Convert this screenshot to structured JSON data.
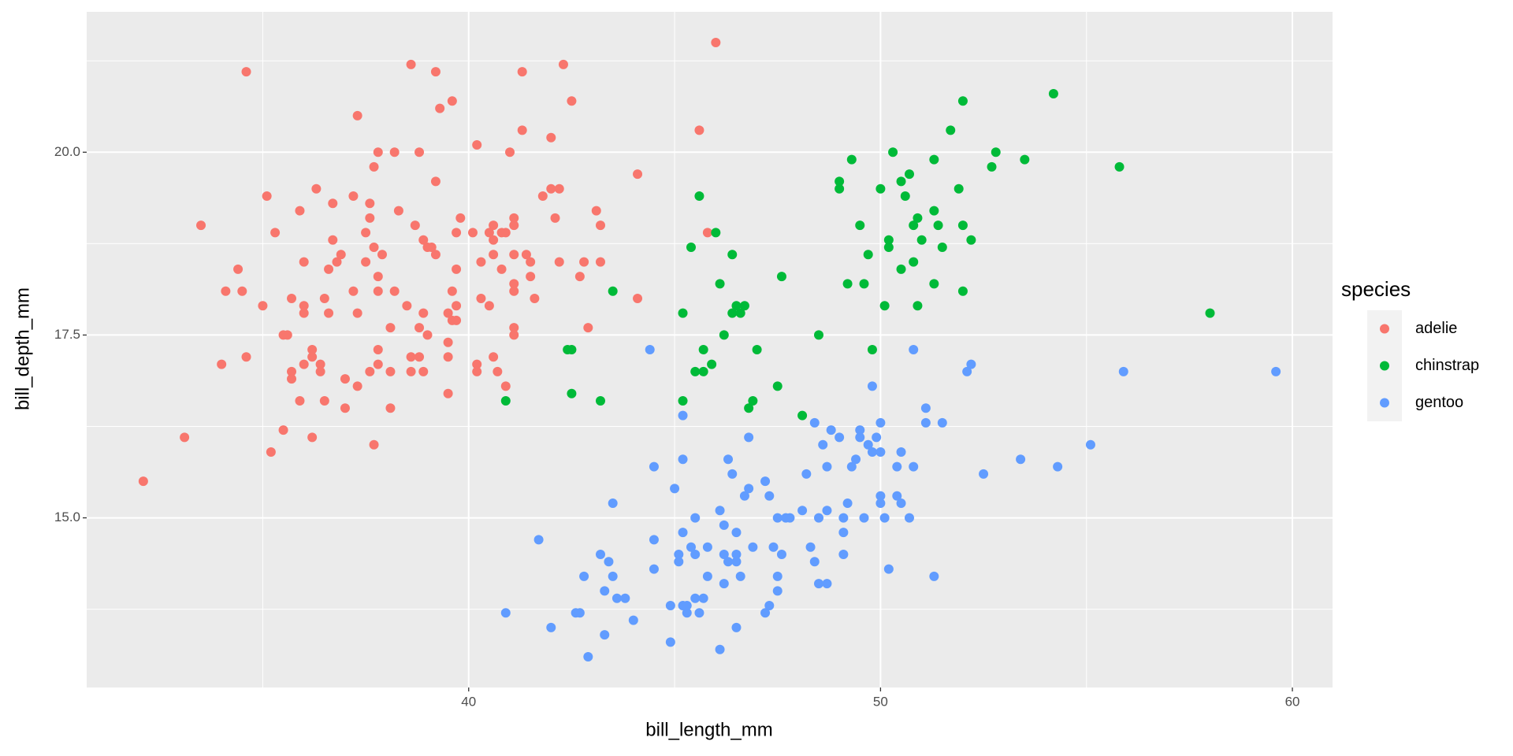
{
  "chart_data": {
    "type": "scatter",
    "x_label": "bill_length_mm",
    "y_label": "bill_depth_mm",
    "legend_title": "species",
    "legend_position": "right",
    "grid": true,
    "xlim": [
      30.725,
      60.975
    ],
    "ylim": [
      12.68,
      21.92
    ],
    "xticks": [
      40,
      50,
      60
    ],
    "yticks": [
      {
        "value": 15,
        "label": "15.0"
      },
      {
        "value": 17.5,
        "label": "17.5"
      },
      {
        "value": 20,
        "label": "20.0"
      }
    ],
    "x_minor_grid": [
      35,
      45,
      55
    ],
    "y_minor_grid": [
      13.75,
      16.25,
      18.75,
      21.25
    ],
    "series": [
      {
        "name": "adelie",
        "color": "#F8766D",
        "x": [
          32.1,
          33.1,
          33.5,
          34.0,
          34.1,
          34.4,
          34.5,
          34.6,
          34.6,
          35.0,
          35.1,
          35.2,
          35.3,
          35.5,
          35.5,
          35.6,
          35.7,
          35.7,
          35.7,
          35.9,
          35.9,
          36.0,
          36.0,
          36.0,
          36.0,
          36.2,
          36.2,
          36.2,
          36.3,
          36.4,
          36.4,
          36.5,
          36.5,
          36.6,
          36.6,
          36.7,
          36.7,
          36.8,
          36.9,
          37.0,
          37.0,
          37.2,
          37.2,
          37.3,
          37.3,
          37.3,
          37.5,
          37.5,
          37.6,
          37.6,
          37.6,
          37.7,
          37.7,
          37.7,
          37.8,
          37.8,
          37.8,
          37.8,
          37.8,
          37.9,
          38.1,
          38.1,
          38.1,
          38.2,
          38.2,
          38.3,
          38.5,
          38.6,
          38.6,
          38.6,
          38.7,
          38.8,
          38.8,
          38.8,
          38.9,
          38.9,
          38.9,
          39.0,
          39.0,
          39.1,
          39.2,
          39.2,
          39.2,
          39.3,
          39.5,
          39.5,
          39.5,
          39.5,
          39.6,
          39.6,
          39.6,
          39.7,
          39.7,
          39.7,
          39.7,
          39.8,
          40.1,
          40.2,
          40.2,
          40.2,
          40.3,
          40.3,
          40.5,
          40.5,
          40.6,
          40.6,
          40.6,
          40.6,
          40.7,
          40.8,
          40.8,
          40.9,
          40.9,
          41.0,
          41.1,
          41.1,
          41.1,
          41.1,
          41.1,
          41.1,
          41.1,
          41.3,
          41.3,
          41.4,
          41.5,
          41.5,
          41.6,
          41.8,
          42.0,
          42.0,
          42.1,
          42.2,
          42.2,
          42.3,
          42.5,
          42.7,
          42.8,
          42.9,
          43.1,
          43.2,
          43.2,
          44.1,
          44.1,
          45.8,
          46.0,
          45.6
        ],
        "values": [
          15.5,
          16.1,
          19.0,
          17.1,
          18.1,
          18.4,
          18.1,
          21.1,
          17.2,
          17.9,
          19.4,
          15.9,
          18.9,
          16.2,
          17.5,
          17.5,
          18.0,
          17.0,
          16.9,
          19.2,
          16.6,
          18.5,
          17.8,
          17.9,
          17.1,
          16.1,
          17.2,
          17.3,
          19.5,
          17.1,
          17.0,
          18.0,
          16.6,
          18.4,
          17.8,
          18.8,
          19.3,
          18.5,
          18.6,
          16.9,
          16.5,
          19.4,
          18.1,
          20.5,
          17.8,
          16.8,
          18.5,
          18.9,
          19.3,
          19.1,
          17.0,
          19.8,
          18.7,
          16.0,
          20.0,
          18.3,
          18.1,
          17.3,
          17.1,
          18.6,
          17.6,
          17.0,
          16.5,
          20.0,
          18.1,
          19.2,
          17.9,
          21.2,
          17.2,
          17.0,
          19.0,
          17.6,
          20.0,
          17.2,
          17.8,
          18.8,
          17.0,
          18.7,
          17.5,
          18.7,
          19.6,
          21.1,
          18.6,
          20.6,
          17.8,
          16.7,
          17.4,
          17.2,
          20.7,
          18.1,
          17.7,
          18.9,
          17.9,
          17.7,
          18.4,
          19.1,
          18.9,
          20.1,
          17.1,
          17.0,
          18.0,
          18.5,
          18.9,
          17.9,
          19.0,
          18.6,
          17.2,
          18.8,
          17.0,
          18.4,
          18.9,
          16.8,
          18.9,
          20.0,
          19.0,
          19.1,
          18.6,
          18.2,
          18.1,
          17.6,
          17.5,
          21.1,
          20.3,
          18.6,
          18.5,
          18.3,
          18.0,
          19.4,
          20.2,
          19.5,
          19.1,
          19.5,
          18.5,
          21.2,
          20.7,
          18.3,
          18.5,
          17.6,
          19.2,
          18.5,
          19.0,
          19.7,
          18.0,
          18.9,
          21.5,
          20.3
        ]
      },
      {
        "name": "chinstrap",
        "color": "#00BA38",
        "x": [
          40.9,
          42.4,
          42.5,
          42.5,
          43.2,
          43.5,
          45.2,
          45.2,
          45.4,
          45.5,
          45.6,
          45.7,
          45.7,
          45.9,
          46.0,
          46.1,
          46.2,
          46.4,
          46.4,
          46.5,
          46.6,
          46.7,
          46.8,
          46.9,
          47.0,
          47.6,
          47.5,
          48.1,
          48.5,
          49.0,
          49.0,
          49.2,
          49.3,
          49.5,
          49.6,
          49.7,
          49.8,
          50.0,
          50.1,
          50.2,
          50.2,
          50.3,
          50.5,
          50.5,
          50.6,
          50.7,
          50.8,
          50.8,
          50.9,
          50.9,
          51.0,
          51.3,
          51.3,
          51.3,
          51.4,
          51.5,
          51.7,
          51.9,
          52.0,
          52.0,
          52.0,
          52.2,
          52.7,
          52.8,
          53.5,
          54.2,
          55.8,
          58.0
        ],
        "values": [
          16.6,
          17.3,
          17.3,
          16.7,
          16.6,
          18.1,
          17.8,
          16.6,
          18.7,
          17.0,
          19.4,
          17.3,
          17.0,
          17.1,
          18.9,
          18.2,
          17.5,
          18.6,
          17.8,
          17.9,
          17.8,
          17.9,
          16.5,
          16.6,
          17.3,
          18.3,
          16.8,
          16.4,
          17.5,
          19.6,
          19.5,
          18.2,
          19.9,
          19.0,
          18.2,
          18.6,
          17.3,
          19.5,
          17.9,
          18.7,
          18.8,
          20.0,
          18.4,
          19.6,
          19.4,
          19.7,
          19.0,
          18.5,
          19.1,
          17.9,
          18.8,
          19.2,
          18.2,
          19.9,
          19.0,
          18.7,
          20.3,
          19.5,
          20.7,
          19.0,
          18.1,
          18.8,
          19.8,
          20.0,
          19.9,
          20.8,
          19.8,
          17.8
        ]
      },
      {
        "name": "gentoo",
        "color": "#619CFF",
        "x": [
          40.9,
          41.7,
          42.0,
          42.6,
          42.7,
          42.8,
          42.9,
          43.2,
          43.3,
          43.3,
          43.4,
          43.5,
          43.5,
          43.6,
          43.8,
          44.0,
          44.4,
          44.5,
          44.5,
          44.5,
          44.9,
          44.9,
          45.0,
          45.1,
          45.1,
          45.2,
          45.2,
          45.2,
          45.2,
          45.3,
          45.3,
          45.4,
          45.5,
          45.5,
          45.5,
          45.6,
          45.7,
          45.8,
          45.8,
          46.1,
          46.1,
          46.2,
          46.2,
          46.2,
          46.3,
          46.3,
          46.4,
          46.5,
          46.5,
          46.5,
          46.5,
          46.6,
          46.7,
          46.8,
          46.8,
          46.9,
          47.2,
          47.2,
          47.3,
          47.3,
          47.4,
          47.5,
          47.5,
          47.5,
          47.6,
          47.7,
          47.8,
          48.1,
          48.2,
          48.3,
          48.4,
          48.4,
          48.5,
          48.5,
          48.6,
          48.7,
          48.7,
          48.7,
          48.8,
          49.0,
          49.1,
          49.1,
          49.1,
          49.2,
          49.3,
          49.4,
          49.5,
          49.5,
          49.6,
          49.7,
          49.8,
          49.8,
          49.9,
          50.0,
          50.0,
          50.0,
          50.0,
          50.1,
          50.2,
          50.4,
          50.4,
          50.5,
          50.5,
          50.7,
          50.8,
          50.8,
          51.1,
          51.1,
          51.3,
          51.5,
          52.1,
          52.2,
          52.5,
          53.4,
          54.3,
          55.1,
          55.9,
          59.6
        ],
        "values": [
          13.7,
          14.7,
          13.5,
          13.7,
          13.7,
          14.2,
          13.1,
          14.5,
          14.0,
          13.4,
          14.4,
          15.2,
          14.2,
          13.9,
          13.9,
          13.6,
          17.3,
          15.7,
          14.7,
          14.3,
          13.8,
          13.3,
          15.4,
          14.4,
          14.5,
          15.8,
          14.8,
          16.4,
          13.8,
          13.8,
          13.7,
          14.6,
          15.0,
          14.5,
          13.9,
          13.7,
          13.9,
          14.6,
          14.2,
          15.1,
          13.2,
          14.9,
          14.5,
          14.1,
          14.4,
          15.8,
          15.6,
          14.8,
          14.5,
          14.4,
          13.5,
          14.2,
          15.3,
          15.4,
          16.1,
          14.6,
          15.5,
          13.7,
          15.3,
          13.8,
          14.6,
          15.0,
          14.2,
          14.0,
          14.5,
          15.0,
          15.0,
          15.1,
          15.6,
          14.6,
          16.3,
          14.4,
          15.0,
          14.1,
          16.0,
          15.7,
          15.1,
          14.1,
          16.2,
          16.1,
          15.0,
          14.8,
          14.5,
          15.2,
          15.7,
          15.8,
          16.2,
          16.1,
          15.0,
          16.0,
          16.8,
          15.9,
          16.1,
          16.3,
          15.3,
          15.2,
          15.9,
          15.0,
          14.3,
          15.3,
          15.7,
          15.2,
          15.9,
          15.0,
          17.3,
          15.7,
          16.3,
          16.5,
          14.2,
          16.3,
          17.0,
          17.1,
          15.6,
          15.8,
          15.7,
          16.0,
          17.0,
          17.0
        ]
      }
    ]
  }
}
